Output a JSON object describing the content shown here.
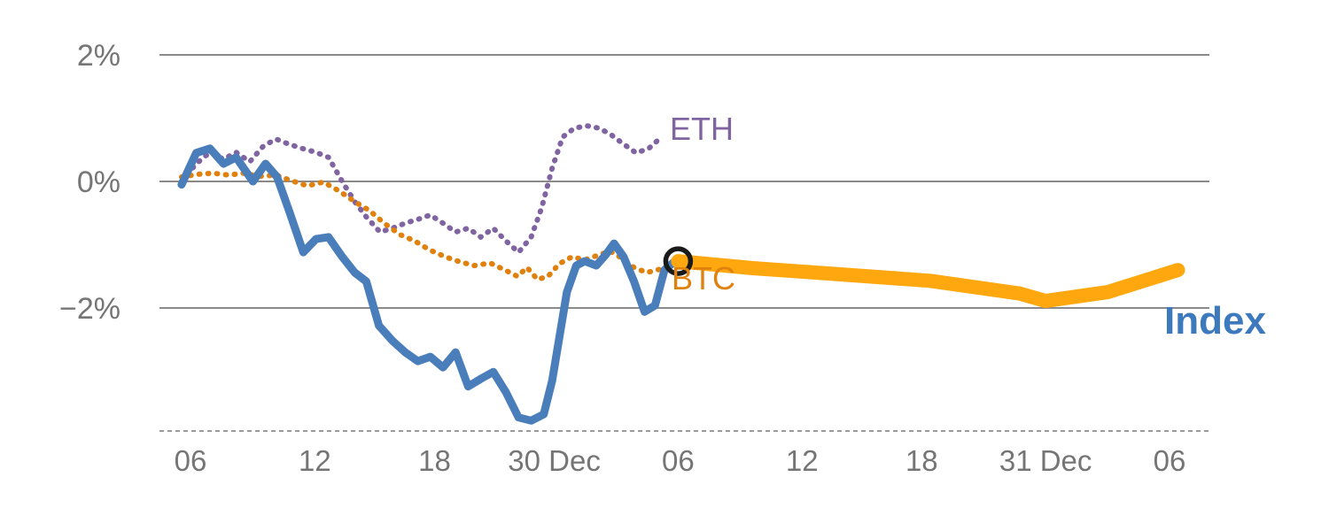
{
  "chart_data": {
    "type": "line",
    "title": "",
    "xlabel": "",
    "ylabel": "",
    "ylim": [
      -4.1,
      2.5
    ],
    "grid": "horizontal",
    "legend_position": "inline-labels",
    "colors": {
      "grid": "#8a8a8a",
      "axis": "#9a9a9a",
      "tick_text": "#757575",
      "index": "#4a7ebb",
      "eth": "#8064a2",
      "btc": "#e0810e",
      "btc_highlight": "#ffa70f",
      "marker": "#1a1a1a"
    },
    "yticks": [
      {
        "value": 2,
        "label": "2%"
      },
      {
        "value": 0,
        "label": "0%"
      },
      {
        "value": -2,
        "label": "−2%"
      }
    ],
    "xticks": [
      {
        "x": 2.95,
        "label": "06"
      },
      {
        "x": 14.8,
        "label": "12"
      },
      {
        "x": 26.2,
        "label": "18"
      },
      {
        "x": 37.6,
        "label": "30 Dec"
      },
      {
        "x": 49.4,
        "label": "06"
      },
      {
        "x": 61.2,
        "label": "12"
      },
      {
        "x": 72.6,
        "label": "18"
      },
      {
        "x": 84.4,
        "label": "31 Dec"
      },
      {
        "x": 96.2,
        "label": "06"
      }
    ],
    "labels": {
      "eth": "ETH",
      "btc": "BTC",
      "index": "Index"
    },
    "series": [
      {
        "name": "ETH",
        "color_key": "eth",
        "style": "dotted",
        "width": 6,
        "points": [
          [
            2.1,
            0.0
          ],
          [
            3.5,
            0.28
          ],
          [
            4.8,
            0.46
          ],
          [
            6.1,
            0.35
          ],
          [
            7.3,
            0.46
          ],
          [
            8.6,
            0.31
          ],
          [
            9.9,
            0.56
          ],
          [
            11.1,
            0.67
          ],
          [
            12.3,
            0.59
          ],
          [
            13.6,
            0.52
          ],
          [
            14.9,
            0.46
          ],
          [
            16.1,
            0.38
          ],
          [
            17.4,
            0.0
          ],
          [
            18.6,
            -0.32
          ],
          [
            19.7,
            -0.56
          ],
          [
            21.0,
            -0.8
          ],
          [
            22.2,
            -0.74
          ],
          [
            23.4,
            -0.66
          ],
          [
            24.6,
            -0.6
          ],
          [
            25.8,
            -0.53
          ],
          [
            27.0,
            -0.66
          ],
          [
            28.2,
            -0.8
          ],
          [
            29.4,
            -0.74
          ],
          [
            30.6,
            -0.88
          ],
          [
            31.8,
            -0.74
          ],
          [
            33.0,
            -0.94
          ],
          [
            34.2,
            -1.12
          ],
          [
            35.4,
            -0.88
          ],
          [
            36.4,
            -0.42
          ],
          [
            37.4,
            0.21
          ],
          [
            38.4,
            0.7
          ],
          [
            39.5,
            0.84
          ],
          [
            40.7,
            0.88
          ],
          [
            41.9,
            0.84
          ],
          [
            43.0,
            0.74
          ],
          [
            44.2,
            0.59
          ],
          [
            45.4,
            0.45
          ],
          [
            46.6,
            0.52
          ],
          [
            47.8,
            0.7
          ]
        ]
      },
      {
        "name": "BTC",
        "color_key": "btc",
        "style": "dotted",
        "width": 6,
        "points": [
          [
            2.1,
            0.07
          ],
          [
            3.5,
            0.11
          ],
          [
            5.1,
            0.13
          ],
          [
            6.6,
            0.1
          ],
          [
            8.0,
            0.13
          ],
          [
            9.5,
            0.08
          ],
          [
            11.1,
            0.1
          ],
          [
            12.6,
            0.01
          ],
          [
            14.1,
            -0.07
          ],
          [
            15.6,
            -0.01
          ],
          [
            17.1,
            -0.15
          ],
          [
            18.6,
            -0.32
          ],
          [
            20.0,
            -0.46
          ],
          [
            21.4,
            -0.66
          ],
          [
            22.9,
            -0.84
          ],
          [
            24.3,
            -0.94
          ],
          [
            25.7,
            -1.08
          ],
          [
            27.2,
            -1.19
          ],
          [
            28.6,
            -1.27
          ],
          [
            30.0,
            -1.33
          ],
          [
            31.5,
            -1.29
          ],
          [
            32.9,
            -1.4
          ],
          [
            34.1,
            -1.5
          ],
          [
            35.0,
            -1.36
          ],
          [
            36.0,
            -1.55
          ],
          [
            37.0,
            -1.5
          ],
          [
            38.1,
            -1.3
          ],
          [
            39.3,
            -1.19
          ],
          [
            40.5,
            -1.24
          ],
          [
            41.7,
            -1.17
          ],
          [
            42.9,
            -1.1
          ],
          [
            44.1,
            -1.22
          ],
          [
            45.2,
            -1.36
          ],
          [
            46.4,
            -1.44
          ],
          [
            47.6,
            -1.39
          ],
          [
            48.6,
            -1.33
          ]
        ]
      },
      {
        "name": "Index",
        "color_key": "index",
        "style": "solid",
        "width": 9,
        "points": [
          [
            2.1,
            -0.05
          ],
          [
            3.5,
            0.45
          ],
          [
            4.8,
            0.52
          ],
          [
            6.1,
            0.28
          ],
          [
            7.3,
            0.38
          ],
          [
            8.9,
            0.0
          ],
          [
            10.1,
            0.28
          ],
          [
            11.2,
            0.07
          ],
          [
            12.4,
            -0.49
          ],
          [
            13.7,
            -1.12
          ],
          [
            14.9,
            -0.91
          ],
          [
            16.1,
            -0.88
          ],
          [
            17.4,
            -1.19
          ],
          [
            18.6,
            -1.44
          ],
          [
            19.7,
            -1.58
          ],
          [
            20.9,
            -2.28
          ],
          [
            22.2,
            -2.52
          ],
          [
            23.4,
            -2.7
          ],
          [
            24.6,
            -2.84
          ],
          [
            25.8,
            -2.77
          ],
          [
            27.0,
            -2.94
          ],
          [
            28.2,
            -2.7
          ],
          [
            29.4,
            -3.24
          ],
          [
            30.6,
            -3.12
          ],
          [
            31.8,
            -3.01
          ],
          [
            33.0,
            -3.33
          ],
          [
            34.2,
            -3.73
          ],
          [
            35.4,
            -3.78
          ],
          [
            36.6,
            -3.68
          ],
          [
            37.4,
            -3.15
          ],
          [
            38.1,
            -2.45
          ],
          [
            38.8,
            -1.75
          ],
          [
            39.7,
            -1.33
          ],
          [
            40.5,
            -1.26
          ],
          [
            41.6,
            -1.33
          ],
          [
            42.5,
            -1.16
          ],
          [
            43.3,
            -0.98
          ],
          [
            44.2,
            -1.19
          ],
          [
            45.2,
            -1.58
          ],
          [
            46.2,
            -2.06
          ],
          [
            47.2,
            -1.96
          ],
          [
            48.1,
            -1.4
          ],
          [
            49.1,
            -1.26
          ]
        ]
      },
      {
        "name": "BTC-highlight",
        "color_key": "btc_highlight",
        "style": "solid",
        "width": 16,
        "points": [
          [
            49.4,
            -1.26
          ],
          [
            56.5,
            -1.37
          ],
          [
            65.0,
            -1.47
          ],
          [
            73.4,
            -1.57
          ],
          [
            81.9,
            -1.77
          ],
          [
            84.4,
            -1.89
          ],
          [
            90.3,
            -1.75
          ],
          [
            97.0,
            -1.4
          ]
        ]
      }
    ],
    "marker": {
      "x": 49.4,
      "y": -1.26,
      "r": 14,
      "color_key": "marker"
    }
  }
}
